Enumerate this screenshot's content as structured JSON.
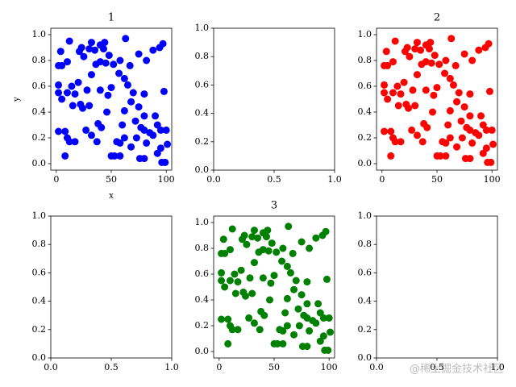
{
  "chart_data": [
    {
      "type": "scatter",
      "title": "1",
      "xlabel": "x",
      "ylabel": "y",
      "color": "#0000ff",
      "x": [
        12,
        4,
        2,
        5,
        10,
        21,
        23,
        25,
        30,
        32,
        35,
        40,
        43,
        44,
        48,
        52,
        58,
        63,
        67,
        75,
        82,
        88,
        94,
        97,
        40,
        36,
        45,
        2,
        2,
        5,
        10,
        14,
        17,
        20,
        28,
        32,
        40,
        47,
        50,
        57,
        62,
        65,
        70,
        80,
        98,
        15,
        22,
        24,
        30,
        46,
        62,
        68,
        75,
        80,
        90,
        72,
        77,
        80,
        85,
        92,
        95,
        100,
        2,
        8,
        10,
        12,
        17,
        27,
        32,
        38,
        41,
        60,
        62,
        55,
        58,
        68,
        73,
        82,
        88,
        95,
        101,
        92,
        96,
        99,
        80,
        76,
        50,
        53,
        58,
        8,
        37
      ],
      "y": [
        0.95,
        0.87,
        0.76,
        0.76,
        0.79,
        0.87,
        0.9,
        0.83,
        0.89,
        0.94,
        0.88,
        0.92,
        0.89,
        0.94,
        0.84,
        0.77,
        0.8,
        0.97,
        0.76,
        0.85,
        0.8,
        0.88,
        0.9,
        0.93,
        0.79,
        0.77,
        0.78,
        0.61,
        0.55,
        0.5,
        0.55,
        0.6,
        0.54,
        0.63,
        0.57,
        0.69,
        0.57,
        0.53,
        0.59,
        0.7,
        0.66,
        0.61,
        0.55,
        0.54,
        0.56,
        0.45,
        0.46,
        0.43,
        0.45,
        0.4,
        0.41,
        0.48,
        0.44,
        0.37,
        0.37,
        0.33,
        0.28,
        0.26,
        0.24,
        0.3,
        0.26,
        0.26,
        0.25,
        0.25,
        0.2,
        0.17,
        0.17,
        0.26,
        0.22,
        0.31,
        0.28,
        0.3,
        0.2,
        0.17,
        0.16,
        0.13,
        0.2,
        0.16,
        0.22,
        0.12,
        0.15,
        0.08,
        0.01,
        0.01,
        0.04,
        0.04,
        0.06,
        0.06,
        0.06,
        0.06,
        0.17
      ],
      "xlim": [
        -5,
        105
      ],
      "ylim": [
        -0.05,
        1.05
      ],
      "xticks": [
        0,
        50,
        100
      ],
      "yticks": [
        {
          "value": 0,
          "label": "0.0"
        },
        {
          "value": 0.2,
          "label": "0.2"
        },
        {
          "value": 0.4,
          "label": "0.4"
        },
        {
          "value": 0.6,
          "label": "0.6"
        },
        {
          "value": 0.8,
          "label": "0.8"
        },
        {
          "value": 1,
          "label": "1.0"
        }
      ]
    },
    {
      "type": "empty",
      "xlim": [
        0,
        1
      ],
      "ylim": [
        0,
        1
      ],
      "xticks": [
        {
          "value": 0,
          "label": "0.0"
        },
        {
          "value": 0.5,
          "label": "0.5"
        },
        {
          "value": 1,
          "label": "1.0"
        }
      ],
      "yticks": [
        {
          "value": 0,
          "label": "0.0"
        },
        {
          "value": 0.2,
          "label": "0.2"
        },
        {
          "value": 0.4,
          "label": "0.4"
        },
        {
          "value": 0.6,
          "label": "0.6"
        },
        {
          "value": 0.8,
          "label": "0.8"
        },
        {
          "value": 1,
          "label": "1.0"
        }
      ]
    },
    {
      "type": "scatter",
      "title": "2",
      "color": "#ff0000",
      "x": [
        12,
        4,
        2,
        5,
        10,
        21,
        23,
        25,
        30,
        32,
        35,
        40,
        43,
        44,
        48,
        52,
        58,
        63,
        67,
        75,
        82,
        88,
        94,
        97,
        40,
        36,
        45,
        2,
        2,
        5,
        10,
        14,
        17,
        20,
        28,
        32,
        40,
        47,
        50,
        57,
        62,
        65,
        70,
        80,
        98,
        15,
        22,
        24,
        30,
        46,
        62,
        68,
        75,
        80,
        90,
        72,
        77,
        80,
        85,
        92,
        95,
        100,
        2,
        8,
        10,
        12,
        17,
        27,
        32,
        38,
        41,
        60,
        62,
        55,
        58,
        68,
        73,
        82,
        88,
        95,
        101,
        92,
        96,
        99,
        80,
        76,
        50,
        53,
        58,
        8,
        37
      ],
      "y": [
        0.95,
        0.87,
        0.76,
        0.76,
        0.79,
        0.87,
        0.9,
        0.83,
        0.89,
        0.94,
        0.88,
        0.92,
        0.89,
        0.94,
        0.84,
        0.77,
        0.8,
        0.97,
        0.76,
        0.85,
        0.8,
        0.88,
        0.9,
        0.93,
        0.79,
        0.77,
        0.78,
        0.61,
        0.55,
        0.5,
        0.55,
        0.6,
        0.54,
        0.63,
        0.57,
        0.69,
        0.57,
        0.53,
        0.59,
        0.7,
        0.66,
        0.61,
        0.55,
        0.54,
        0.56,
        0.45,
        0.46,
        0.43,
        0.45,
        0.4,
        0.41,
        0.48,
        0.44,
        0.37,
        0.37,
        0.33,
        0.28,
        0.26,
        0.24,
        0.3,
        0.26,
        0.26,
        0.25,
        0.25,
        0.2,
        0.17,
        0.17,
        0.26,
        0.22,
        0.31,
        0.28,
        0.3,
        0.2,
        0.17,
        0.16,
        0.13,
        0.2,
        0.16,
        0.22,
        0.12,
        0.15,
        0.08,
        0.01,
        0.01,
        0.04,
        0.04,
        0.06,
        0.06,
        0.06,
        0.06,
        0.17
      ],
      "xlim": [
        -5,
        105
      ],
      "ylim": [
        -0.05,
        1.05
      ],
      "xticks": [
        0,
        50,
        100
      ],
      "yticks": [
        {
          "value": 0,
          "label": "0.0"
        },
        {
          "value": 0.2,
          "label": "0.2"
        },
        {
          "value": 0.4,
          "label": "0.4"
        },
        {
          "value": 0.6,
          "label": "0.6"
        },
        {
          "value": 0.8,
          "label": "0.8"
        },
        {
          "value": 1,
          "label": "1.0"
        }
      ]
    },
    {
      "type": "empty",
      "xlim": [
        0,
        1
      ],
      "ylim": [
        0,
        1
      ],
      "xticks": [
        {
          "value": 0,
          "label": "0.0"
        },
        {
          "value": 0.5,
          "label": "0.5"
        },
        {
          "value": 1,
          "label": "1.0"
        }
      ],
      "yticks": [
        {
          "value": 0,
          "label": "0.0"
        },
        {
          "value": 0.2,
          "label": "0.2"
        },
        {
          "value": 0.4,
          "label": "0.4"
        },
        {
          "value": 0.6,
          "label": "0.6"
        },
        {
          "value": 0.8,
          "label": "0.8"
        },
        {
          "value": 1,
          "label": "1.0"
        }
      ]
    },
    {
      "type": "scatter",
      "title": "3",
      "color": "#008000",
      "x": [
        12,
        4,
        2,
        5,
        10,
        21,
        23,
        25,
        30,
        32,
        35,
        40,
        43,
        44,
        48,
        52,
        58,
        63,
        67,
        75,
        82,
        88,
        94,
        97,
        40,
        36,
        45,
        2,
        2,
        5,
        10,
        14,
        17,
        20,
        28,
        32,
        40,
        47,
        50,
        57,
        62,
        65,
        70,
        80,
        98,
        15,
        22,
        24,
        30,
        46,
        62,
        68,
        75,
        80,
        90,
        72,
        77,
        80,
        85,
        92,
        95,
        100,
        2,
        8,
        10,
        12,
        17,
        27,
        32,
        38,
        41,
        60,
        62,
        55,
        58,
        68,
        73,
        82,
        88,
        95,
        101,
        92,
        96,
        99,
        80,
        76,
        50,
        53,
        58,
        8,
        37
      ],
      "y": [
        0.95,
        0.87,
        0.76,
        0.76,
        0.79,
        0.87,
        0.9,
        0.83,
        0.89,
        0.94,
        0.88,
        0.92,
        0.89,
        0.94,
        0.84,
        0.77,
        0.8,
        0.97,
        0.76,
        0.85,
        0.8,
        0.88,
        0.9,
        0.93,
        0.79,
        0.77,
        0.78,
        0.61,
        0.55,
        0.5,
        0.55,
        0.6,
        0.54,
        0.63,
        0.57,
        0.69,
        0.57,
        0.53,
        0.59,
        0.7,
        0.66,
        0.61,
        0.55,
        0.54,
        0.56,
        0.45,
        0.46,
        0.43,
        0.45,
        0.4,
        0.41,
        0.48,
        0.44,
        0.37,
        0.37,
        0.33,
        0.28,
        0.26,
        0.24,
        0.3,
        0.26,
        0.26,
        0.25,
        0.25,
        0.2,
        0.17,
        0.17,
        0.26,
        0.22,
        0.31,
        0.28,
        0.3,
        0.2,
        0.17,
        0.16,
        0.13,
        0.2,
        0.16,
        0.22,
        0.12,
        0.15,
        0.08,
        0.01,
        0.01,
        0.04,
        0.04,
        0.06,
        0.06,
        0.06,
        0.06,
        0.17
      ],
      "xlim": [
        -5,
        105
      ],
      "ylim": [
        -0.05,
        1.05
      ],
      "xticks": [
        0,
        50,
        100
      ],
      "yticks": [
        {
          "value": 0,
          "label": "0.0"
        },
        {
          "value": 0.2,
          "label": "0.2"
        },
        {
          "value": 0.4,
          "label": "0.4"
        },
        {
          "value": 0.6,
          "label": "0.6"
        },
        {
          "value": 0.8,
          "label": "0.8"
        },
        {
          "value": 1,
          "label": "1.0"
        }
      ]
    },
    {
      "type": "empty",
      "xlim": [
        0,
        1
      ],
      "ylim": [
        0,
        1
      ],
      "xticks": [
        {
          "value": 0,
          "label": "0.0"
        },
        {
          "value": 0.5,
          "label": "0.5"
        },
        {
          "value": 1,
          "label": "1.0"
        }
      ],
      "yticks": [
        {
          "value": 0,
          "label": "0.0"
        },
        {
          "value": 0.2,
          "label": "0.2"
        },
        {
          "value": 0.4,
          "label": "0.4"
        },
        {
          "value": 0.6,
          "label": "0.6"
        },
        {
          "value": 0.8,
          "label": "0.8"
        },
        {
          "value": 1,
          "label": "1.0"
        }
      ]
    }
  ],
  "watermark": "@稀土掘金技术社区"
}
